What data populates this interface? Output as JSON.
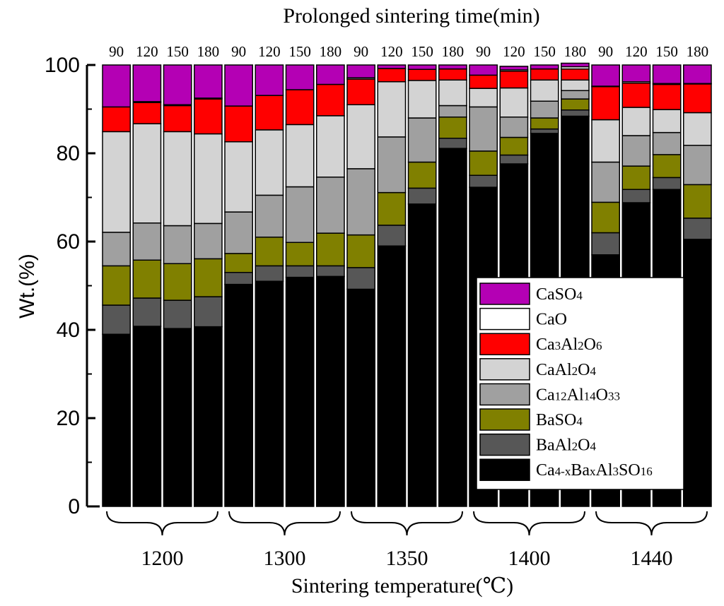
{
  "chart_data": {
    "type": "bar",
    "stacked": true,
    "title": "Prolonged sintering time(min)",
    "xlabel": "Sintering temperature(℃)",
    "ylabel": "Wt.(%)",
    "ylim": [
      0,
      100
    ],
    "yticks": [
      "0",
      "20",
      "40",
      "60",
      "80",
      "100"
    ],
    "categories": [
      "90",
      "120",
      "150",
      "180",
      "90",
      "120",
      "150",
      "180",
      "90",
      "120",
      "150",
      "180",
      "90",
      "120",
      "150",
      "180",
      "90",
      "120",
      "150",
      "180"
    ],
    "groups": [
      {
        "label": "1200"
      },
      {
        "label": "1300"
      },
      {
        "label": "1350"
      },
      {
        "label": "1400"
      },
      {
        "label": "1440"
      }
    ],
    "legend_position": "bottom-right",
    "series": [
      {
        "key": "ye",
        "name": "Ca4-xBaxAl3SO16",
        "color": "#000000",
        "values": [
          39.0,
          40.8,
          40.3,
          40.7,
          50.3,
          51.0,
          51.9,
          52.1,
          49.2,
          59.0,
          68.5,
          81.1,
          72.3,
          77.6,
          84.5,
          88.4,
          57.0,
          68.8,
          71.8,
          60.5
        ]
      },
      {
        "key": "baal",
        "name": "BaAl2O4",
        "color": "#575757",
        "values": [
          6.6,
          6.4,
          6.4,
          6.8,
          2.7,
          3.5,
          2.6,
          2.4,
          4.9,
          4.7,
          3.6,
          2.3,
          2.7,
          2.0,
          1.0,
          1.4,
          5.0,
          3.0,
          2.7,
          4.8
        ]
      },
      {
        "key": "baso",
        "name": "BaSO4",
        "color": "#808000",
        "values": [
          8.9,
          8.6,
          8.3,
          8.6,
          4.3,
          6.5,
          5.3,
          7.4,
          7.4,
          7.4,
          5.9,
          4.8,
          5.5,
          4.0,
          2.5,
          2.5,
          6.9,
          5.3,
          5.2,
          7.6
        ]
      },
      {
        "key": "c12a7",
        "name": "Ca12Al14O33",
        "color": "#a0a0a0",
        "values": [
          7.6,
          8.4,
          8.6,
          8.0,
          9.4,
          9.5,
          12.6,
          12.7,
          15.0,
          12.6,
          10.0,
          2.6,
          10.0,
          4.6,
          3.8,
          1.9,
          9.1,
          6.9,
          5.0,
          8.9
        ]
      },
      {
        "key": "ca",
        "name": "CaAl2O4",
        "color": "#d3d3d3",
        "values": [
          22.8,
          22.5,
          21.3,
          20.3,
          15.9,
          14.8,
          14.1,
          13.9,
          14.5,
          12.5,
          8.5,
          5.8,
          4.2,
          6.6,
          4.8,
          2.4,
          9.6,
          6.4,
          5.2,
          7.4
        ]
      },
      {
        "key": "c3a",
        "name": "Ca3Al2O6",
        "color": "#ff0000",
        "values": [
          5.6,
          4.8,
          5.9,
          7.9,
          8.1,
          7.8,
          7.9,
          7.1,
          5.8,
          3.0,
          2.5,
          2.5,
          3.0,
          3.8,
          2.5,
          2.5,
          7.5,
          5.5,
          5.7,
          6.5
        ]
      },
      {
        "key": "cao",
        "name": "CaO",
        "color": "#ffffff",
        "values": [
          0.0,
          0.2,
          0.2,
          0.2,
          0.0,
          0.0,
          0.0,
          0.0,
          0.3,
          0.0,
          0.0,
          0.0,
          0.0,
          0.3,
          0.0,
          0.5,
          0.1,
          0.3,
          0.2,
          0.1
        ]
      },
      {
        "key": "caso",
        "name": "CaSO4",
        "color": "#b400b4",
        "values": [
          9.5,
          8.3,
          9.0,
          7.5,
          9.3,
          6.9,
          5.6,
          4.4,
          2.9,
          0.8,
          1.0,
          0.9,
          2.3,
          0.8,
          0.9,
          0.8,
          4.8,
          3.8,
          4.2,
          4.2
        ]
      }
    ]
  }
}
